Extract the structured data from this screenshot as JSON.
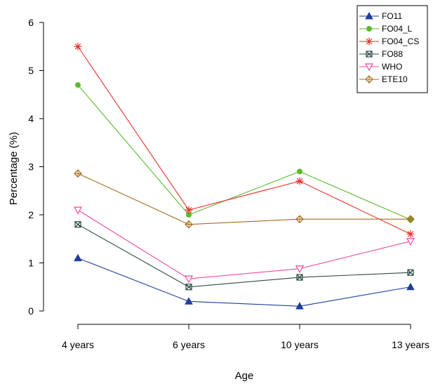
{
  "chart_data": {
    "type": "line",
    "xlabel": "Age",
    "ylabel": "Percentage (%)",
    "categories": [
      "4 years",
      "6 years",
      "10 years",
      "13 years"
    ],
    "y_ticks": [
      0,
      1,
      2,
      3,
      4,
      5,
      6
    ],
    "ylim": [
      0,
      6
    ],
    "grid": false,
    "legend_position": "top-right",
    "series": [
      {
        "name": "FO11",
        "color": "#1c3f9e",
        "marker": "filled-triangle",
        "values": [
          1.1,
          0.2,
          0.1,
          0.5
        ]
      },
      {
        "name": "FO04_L",
        "color": "#5dba2e",
        "marker": "filled-circle",
        "values": [
          4.7,
          2.0,
          2.9,
          1.9
        ]
      },
      {
        "name": "FO04_CS",
        "color": "#e8302a",
        "marker": "asterisk",
        "values": [
          5.5,
          2.1,
          2.7,
          1.6
        ]
      },
      {
        "name": "FO88",
        "color": "#2b4a45",
        "marker": "boxed-x",
        "values": [
          1.8,
          0.5,
          0.7,
          0.8
        ]
      },
      {
        "name": "WHO",
        "color": "#f04aa0",
        "marker": "open-down-triangle",
        "values": [
          2.1,
          0.67,
          0.88,
          1.45
        ]
      },
      {
        "name": "ETE10",
        "color": "#a86a1e",
        "marker": "crossed-diamond",
        "values": [
          2.86,
          1.8,
          1.91,
          1.91
        ]
      }
    ]
  }
}
